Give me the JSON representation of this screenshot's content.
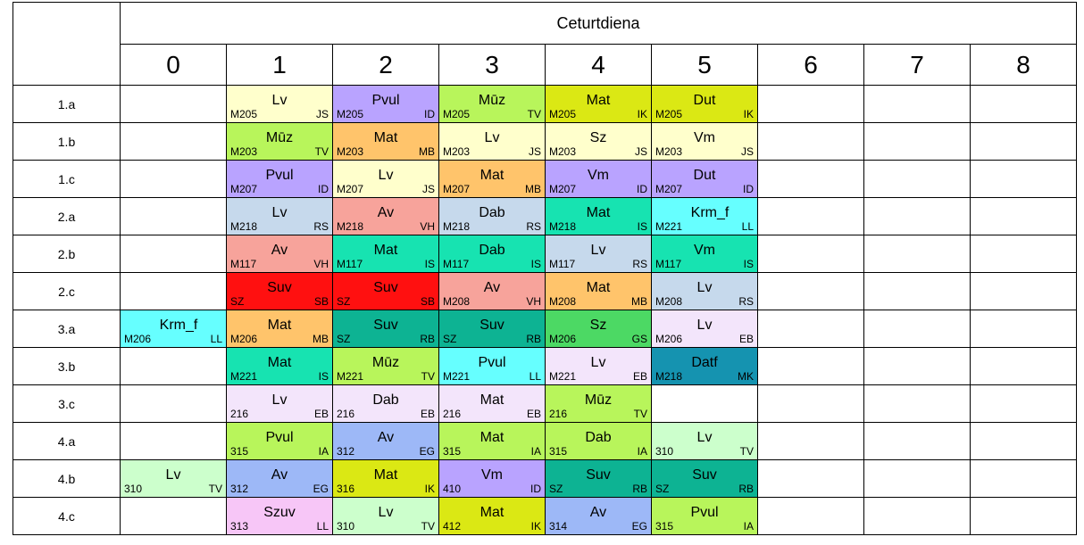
{
  "top_text": "",
  "day": "Ceturtdiena",
  "periods": [
    "0",
    "1",
    "2",
    "3",
    "4",
    "5",
    "6",
    "7",
    "8"
  ],
  "rows": [
    {
      "cls": "1.a",
      "slots": [
        null,
        {
          "s": "Lv",
          "r": "M205",
          "t": "JS",
          "c": "#ffffcc"
        },
        {
          "s": "Pvul",
          "r": "M205",
          "t": "ID",
          "c": "#b9a3ff"
        },
        {
          "s": "Mūz",
          "r": "M205",
          "t": "TV",
          "c": "#b8f55b"
        },
        {
          "s": "Mat",
          "r": "M205",
          "t": "IK",
          "c": "#dbe814"
        },
        {
          "s": "Dut",
          "r": "M205",
          "t": "IK",
          "c": "#dbe814"
        },
        null,
        null,
        null
      ]
    },
    {
      "cls": "1.b",
      "slots": [
        null,
        {
          "s": "Mūz",
          "r": "M203",
          "t": "TV",
          "c": "#b8f55b"
        },
        {
          "s": "Mat",
          "r": "M203",
          "t": "MB",
          "c": "#ffc46b"
        },
        {
          "s": "Lv",
          "r": "M203",
          "t": "JS",
          "c": "#ffffcc"
        },
        {
          "s": "Sz",
          "r": "M203",
          "t": "JS",
          "c": "#ffffcc"
        },
        {
          "s": "Vm",
          "r": "M203",
          "t": "JS",
          "c": "#ffffcc"
        },
        null,
        null,
        null
      ]
    },
    {
      "cls": "1.c",
      "slots": [
        null,
        {
          "s": "Pvul",
          "r": "M207",
          "t": "ID",
          "c": "#b9a3ff"
        },
        {
          "s": "Lv",
          "r": "M207",
          "t": "JS",
          "c": "#ffffcc"
        },
        {
          "s": "Mat",
          "r": "M207",
          "t": "MB",
          "c": "#ffc46b"
        },
        {
          "s": "Vm",
          "r": "M207",
          "t": "ID",
          "c": "#b9a3ff"
        },
        {
          "s": "Dut",
          "r": "M207",
          "t": "ID",
          "c": "#b9a3ff"
        },
        null,
        null,
        null
      ]
    },
    {
      "cls": "2.a",
      "slots": [
        null,
        {
          "s": "Lv",
          "r": "M218",
          "t": "RS",
          "c": "#c6d9ec"
        },
        {
          "s": "Av",
          "r": "M218",
          "t": "VH",
          "c": "#f7a39b"
        },
        {
          "s": "Dab",
          "r": "M218",
          "t": "RS",
          "c": "#c6d9ec"
        },
        {
          "s": "Mat",
          "r": "M218",
          "t": "IS",
          "c": "#17e3b1"
        },
        {
          "s": "Krm_f",
          "r": "M221",
          "t": "LL",
          "c": "#66ffff",
          "tight": true
        },
        null,
        null,
        null
      ]
    },
    {
      "cls": "2.b",
      "slots": [
        null,
        {
          "s": "Av",
          "r": "M117",
          "t": "VH",
          "c": "#f7a39b"
        },
        {
          "s": "Mat",
          "r": "M117",
          "t": "IS",
          "c": "#17e3b1"
        },
        {
          "s": "Dab",
          "r": "M117",
          "t": "IS",
          "c": "#17e3b1"
        },
        {
          "s": "Lv",
          "r": "M117",
          "t": "RS",
          "c": "#c6d9ec"
        },
        {
          "s": "Vm",
          "r": "M117",
          "t": "IS",
          "c": "#17e3b1"
        },
        null,
        null,
        null
      ]
    },
    {
      "cls": "2.c",
      "slots": [
        null,
        {
          "s": "Suv",
          "r": "SZ",
          "t": "SB",
          "c": "#ff1010"
        },
        {
          "s": "Suv",
          "r": "SZ",
          "t": "SB",
          "c": "#ff1010"
        },
        {
          "s": "Av",
          "r": "M208",
          "t": "VH",
          "c": "#f7a39b"
        },
        {
          "s": "Mat",
          "r": "M208",
          "t": "MB",
          "c": "#ffc46b"
        },
        {
          "s": "Lv",
          "r": "M208",
          "t": "RS",
          "c": "#c6d9ec"
        },
        null,
        null,
        null
      ]
    },
    {
      "cls": "3.a",
      "slots": [
        {
          "s": "Krm_f",
          "r": "M206",
          "t": "LL",
          "c": "#66ffff",
          "tight": true
        },
        {
          "s": "Mat",
          "r": "M206",
          "t": "MB",
          "c": "#ffc46b"
        },
        {
          "s": "Suv",
          "r": "SZ",
          "t": "RB",
          "c": "#0db393"
        },
        {
          "s": "Suv",
          "r": "SZ",
          "t": "RB",
          "c": "#0db393"
        },
        {
          "s": "Sz",
          "r": "M206",
          "t": "GS",
          "c": "#4cd964"
        },
        {
          "s": "Lv",
          "r": "M206",
          "t": "EB",
          "c": "#f3e5fb"
        },
        null,
        null,
        null
      ]
    },
    {
      "cls": "3.b",
      "slots": [
        null,
        {
          "s": "Mat",
          "r": "M221",
          "t": "IS",
          "c": "#17e3b1"
        },
        {
          "s": "Mūz",
          "r": "M221",
          "t": "TV",
          "c": "#b8f55b"
        },
        {
          "s": "Pvul",
          "r": "M221",
          "t": "LL",
          "c": "#66ffff"
        },
        {
          "s": "Lv",
          "r": "M221",
          "t": "EB",
          "c": "#f3e5fb"
        },
        {
          "s": "Datf",
          "r": "M218",
          "t": "MK",
          "c": "#1593b0"
        },
        null,
        null,
        null
      ]
    },
    {
      "cls": "3.c",
      "slots": [
        null,
        {
          "s": "Lv",
          "r": "216",
          "t": "EB",
          "c": "#f3e5fb"
        },
        {
          "s": "Dab",
          "r": "216",
          "t": "EB",
          "c": "#f3e5fb"
        },
        {
          "s": "Mat",
          "r": "216",
          "t": "EB",
          "c": "#f3e5fb"
        },
        {
          "s": "Mūz",
          "r": "216",
          "t": "TV",
          "c": "#b8f55b"
        },
        null,
        null,
        null,
        null
      ]
    },
    {
      "cls": "4.a",
      "slots": [
        null,
        {
          "s": "Pvul",
          "r": "315",
          "t": "IA",
          "c": "#b8f55b"
        },
        {
          "s": "Av",
          "r": "312",
          "t": "EG",
          "c": "#9db8f7"
        },
        {
          "s": "Mat",
          "r": "315",
          "t": "IA",
          "c": "#b8f55b"
        },
        {
          "s": "Dab",
          "r": "315",
          "t": "IA",
          "c": "#b8f55b"
        },
        {
          "s": "Lv",
          "r": "310",
          "t": "TV",
          "c": "#ccffcc"
        },
        null,
        null,
        null
      ]
    },
    {
      "cls": "4.b",
      "slots": [
        {
          "s": "Lv",
          "r": "310",
          "t": "TV",
          "c": "#ccffcc"
        },
        {
          "s": "Av",
          "r": "312",
          "t": "EG",
          "c": "#9db8f7"
        },
        {
          "s": "Mat",
          "r": "316",
          "t": "IK",
          "c": "#dbe814"
        },
        {
          "s": "Vm",
          "r": "410",
          "t": "ID",
          "c": "#b9a3ff"
        },
        {
          "s": "Suv",
          "r": "SZ",
          "t": "RB",
          "c": "#0db393"
        },
        {
          "s": "Suv",
          "r": "SZ",
          "t": "RB",
          "c": "#0db393"
        },
        null,
        null,
        null
      ]
    },
    {
      "cls": "4.c",
      "slots": [
        null,
        {
          "s": "Szuv",
          "r": "313",
          "t": "LL",
          "c": "#f7c6f7"
        },
        {
          "s": "Lv",
          "r": "310",
          "t": "TV",
          "c": "#ccffcc"
        },
        {
          "s": "Mat",
          "r": "412",
          "t": "IK",
          "c": "#dbe814"
        },
        {
          "s": "Av",
          "r": "314",
          "t": "EG",
          "c": "#9db8f7"
        },
        {
          "s": "Pvul",
          "r": "315",
          "t": "IA",
          "c": "#b8f55b"
        },
        null,
        null,
        null
      ]
    }
  ]
}
